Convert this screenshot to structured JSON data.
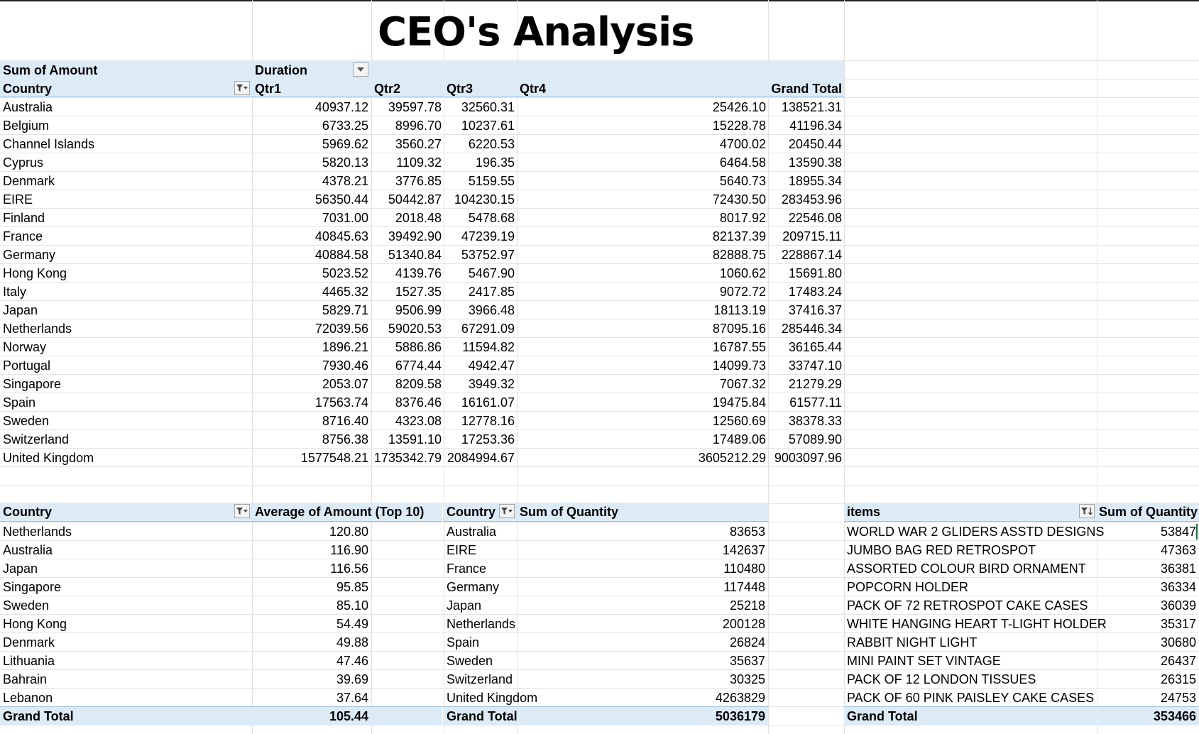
{
  "title": "CEO's Analysis",
  "pivot1": {
    "corner_label": "Sum of Amount",
    "column_field": "Duration",
    "row_field": "Country",
    "columns": [
      "Qtr1",
      "Qtr2",
      "Qtr3",
      "Qtr4",
      "Grand Total"
    ],
    "rows": [
      {
        "country": "Australia",
        "values": [
          "40937.12",
          "39597.78",
          "32560.31",
          "25426.10",
          "138521.31"
        ]
      },
      {
        "country": "Belgium",
        "values": [
          "6733.25",
          "8996.70",
          "10237.61",
          "15228.78",
          "41196.34"
        ]
      },
      {
        "country": "Channel Islands",
        "values": [
          "5969.62",
          "3560.27",
          "6220.53",
          "4700.02",
          "20450.44"
        ]
      },
      {
        "country": "Cyprus",
        "values": [
          "5820.13",
          "1109.32",
          "196.35",
          "6464.58",
          "13590.38"
        ]
      },
      {
        "country": "Denmark",
        "values": [
          "4378.21",
          "3776.85",
          "5159.55",
          "5640.73",
          "18955.34"
        ]
      },
      {
        "country": "EIRE",
        "values": [
          "56350.44",
          "50442.87",
          "104230.15",
          "72430.50",
          "283453.96"
        ]
      },
      {
        "country": "Finland",
        "values": [
          "7031.00",
          "2018.48",
          "5478.68",
          "8017.92",
          "22546.08"
        ]
      },
      {
        "country": "France",
        "values": [
          "40845.63",
          "39492.90",
          "47239.19",
          "82137.39",
          "209715.11"
        ]
      },
      {
        "country": "Germany",
        "values": [
          "40884.58",
          "51340.84",
          "53752.97",
          "82888.75",
          "228867.14"
        ]
      },
      {
        "country": "Hong Kong",
        "values": [
          "5023.52",
          "4139.76",
          "5467.90",
          "1060.62",
          "15691.80"
        ]
      },
      {
        "country": "Italy",
        "values": [
          "4465.32",
          "1527.35",
          "2417.85",
          "9072.72",
          "17483.24"
        ]
      },
      {
        "country": "Japan",
        "values": [
          "5829.71",
          "9506.99",
          "3966.48",
          "18113.19",
          "37416.37"
        ]
      },
      {
        "country": "Netherlands",
        "values": [
          "72039.56",
          "59020.53",
          "67291.09",
          "87095.16",
          "285446.34"
        ]
      },
      {
        "country": "Norway",
        "values": [
          "1896.21",
          "5886.86",
          "11594.82",
          "16787.55",
          "36165.44"
        ]
      },
      {
        "country": "Portugal",
        "values": [
          "7930.46",
          "6774.44",
          "4942.47",
          "14099.73",
          "33747.10"
        ]
      },
      {
        "country": "Singapore",
        "values": [
          "2053.07",
          "8209.58",
          "3949.32",
          "7067.32",
          "21279.29"
        ]
      },
      {
        "country": "Spain",
        "values": [
          "17563.74",
          "8376.46",
          "16161.07",
          "19475.84",
          "61577.11"
        ]
      },
      {
        "country": "Sweden",
        "values": [
          "8716.40",
          "4323.08",
          "12778.16",
          "12560.69",
          "38378.33"
        ]
      },
      {
        "country": "Switzerland",
        "values": [
          "8756.38",
          "13591.10",
          "17253.36",
          "17489.06",
          "57089.90"
        ]
      },
      {
        "country": "United Kingdom",
        "values": [
          "1577548.21",
          "1735342.79",
          "2084994.67",
          "3605212.29",
          "9003097.96"
        ]
      }
    ]
  },
  "pivot2": {
    "header_country": "Country",
    "header_value": "Average of Amount (Top 10)",
    "rows": [
      {
        "label": "Netherlands",
        "value": "120.80"
      },
      {
        "label": "Australia",
        "value": "116.90"
      },
      {
        "label": "Japan",
        "value": "116.56"
      },
      {
        "label": "Singapore",
        "value": "95.85"
      },
      {
        "label": "Sweden",
        "value": "85.10"
      },
      {
        "label": "Hong Kong",
        "value": "54.49"
      },
      {
        "label": "Denmark",
        "value": "49.88"
      },
      {
        "label": "Lithuania",
        "value": "47.46"
      },
      {
        "label": "Bahrain",
        "value": "39.69"
      },
      {
        "label": "Lebanon",
        "value": "37.64"
      }
    ],
    "total_label": "Grand Total",
    "total_value": "105.44"
  },
  "pivot3": {
    "header_country": "Country",
    "header_value": "Sum of Quantity",
    "rows": [
      {
        "label": "Australia",
        "value": "83653"
      },
      {
        "label": "EIRE",
        "value": "142637"
      },
      {
        "label": "France",
        "value": "110480"
      },
      {
        "label": "Germany",
        "value": "117448"
      },
      {
        "label": "Japan",
        "value": "25218"
      },
      {
        "label": "Netherlands",
        "value": "200128"
      },
      {
        "label": "Spain",
        "value": "26824"
      },
      {
        "label": "Sweden",
        "value": "35637"
      },
      {
        "label": "Switzerland",
        "value": "30325"
      },
      {
        "label": "United Kingdom",
        "value": "4263829"
      }
    ],
    "total_label": "Grand Total",
    "total_value": "5036179"
  },
  "pivot4": {
    "header_items": "items",
    "header_value": "Sum of Quantity",
    "rows": [
      {
        "label": "WORLD WAR 2 GLIDERS ASSTD DESIGNS",
        "value": "53847"
      },
      {
        "label": "JUMBO BAG RED RETROSPOT",
        "value": "47363"
      },
      {
        "label": "ASSORTED COLOUR BIRD ORNAMENT",
        "value": "36381"
      },
      {
        "label": "POPCORN HOLDER",
        "value": "36334"
      },
      {
        "label": "PACK OF 72 RETROSPOT CAKE CASES",
        "value": "36039"
      },
      {
        "label": "WHITE HANGING HEART T-LIGHT HOLDER",
        "value": "35317"
      },
      {
        "label": "RABBIT NIGHT LIGHT",
        "value": "30680"
      },
      {
        "label": "MINI PAINT SET VINTAGE",
        "value": "26437"
      },
      {
        "label": "PACK OF 12 LONDON TISSUES",
        "value": "26315"
      },
      {
        "label": "PACK OF 60 PINK PAISLEY CAKE CASES",
        "value": "24753"
      }
    ],
    "total_label": "Grand Total",
    "total_value": "353466"
  }
}
